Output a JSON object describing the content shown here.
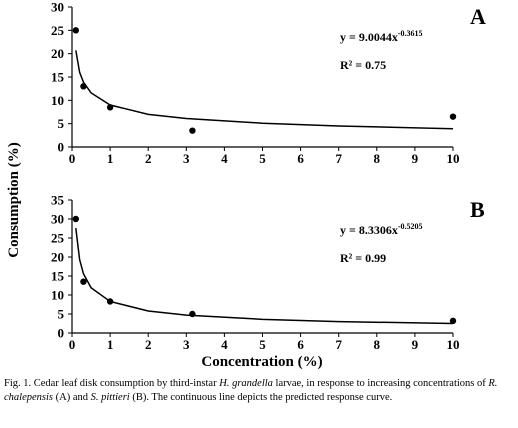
{
  "chart_data": [
    {
      "type": "scatter",
      "panel_label": "A",
      "equation": "y = 9.0044x",
      "equation_exponent": "-0.3615",
      "r_squared": "R² = 0.75",
      "points": {
        "x": [
          0.1,
          0.3,
          1,
          3.16,
          10
        ],
        "y": [
          25,
          13,
          8.5,
          3.5,
          6.5
        ]
      },
      "fit": {
        "x": [
          0.1,
          0.2,
          0.3,
          0.5,
          1,
          2,
          3,
          5,
          7,
          10
        ],
        "y": [
          20.7,
          16.0,
          13.9,
          11.6,
          9.0,
          7.0,
          6.1,
          5.1,
          4.5,
          3.9
        ]
      },
      "color": "#000000",
      "xlim": [
        0,
        10
      ],
      "xticks": [
        0,
        1,
        2,
        3,
        4,
        5,
        6,
        7,
        8,
        9,
        10
      ],
      "ylim": [
        0,
        30
      ],
      "yticks": [
        0,
        5,
        10,
        15,
        20,
        25,
        30
      ]
    },
    {
      "type": "scatter",
      "panel_label": "B",
      "equation": "y = 8.3306x",
      "equation_exponent": "-0.5205",
      "r_squared": "R² = 0.99",
      "points": {
        "x": [
          0.1,
          0.3,
          1,
          3.16,
          10
        ],
        "y": [
          30,
          13.5,
          8.3,
          5,
          3.2
        ]
      },
      "fit": {
        "x": [
          0.1,
          0.2,
          0.3,
          0.5,
          1,
          2,
          3,
          5,
          7,
          10
        ],
        "y": [
          27.6,
          19.3,
          15.6,
          11.9,
          8.3,
          5.8,
          4.7,
          3.6,
          3.0,
          2.5
        ]
      },
      "color": "#000000",
      "xlim": [
        0,
        10
      ],
      "xticks": [
        0,
        1,
        2,
        3,
        4,
        5,
        6,
        7,
        8,
        9,
        10
      ],
      "ylim": [
        0,
        35
      ],
      "yticks": [
        0,
        5,
        10,
        15,
        20,
        25,
        30,
        35
      ]
    }
  ],
  "y_label": "Consumption (%)",
  "x_label": "Concentration (%)",
  "caption": [
    {
      "text": "Fig. 1. Cedar leaf disk consumption by third-instar ",
      "italic": false
    },
    {
      "text": "H. grandella",
      "italic": true
    },
    {
      "text": " larvae, in response to increasing concentrations of ",
      "italic": false
    },
    {
      "text": "R. chalepensis",
      "italic": true
    },
    {
      "text": " (A) and ",
      "italic": false
    },
    {
      "text": "S. pittieri",
      "italic": true
    },
    {
      "text": " (B). The continuous line depicts the predicted response curve.",
      "italic": false
    }
  ]
}
